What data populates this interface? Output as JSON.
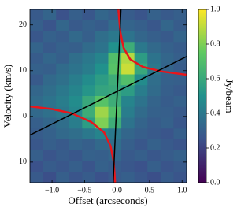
{
  "chart_data": {
    "type": "heatmap",
    "colormap": "viridis",
    "xlabel": "Offset (arcseconds)",
    "ylabel": "Velocity (km/s)",
    "xlim": [
      -1.34,
      1.07
    ],
    "ylim": [
      -14.5,
      23.4
    ],
    "xticks": [
      {
        "value": -1,
        "label": "−1.0"
      },
      {
        "value": -0.5,
        "label": "−0.5"
      },
      {
        "value": 0,
        "label": "0.0"
      },
      {
        "value": 0.5,
        "label": "0.5"
      },
      {
        "value": 1,
        "label": "1.0"
      }
    ],
    "yticks": [
      {
        "value": -10,
        "label": "−10"
      },
      0,
      10,
      20
    ],
    "z": [
      [
        0.28,
        0.32,
        0.25,
        0.3,
        0.27,
        0.33,
        0.3,
        0.29,
        0.26,
        0.31,
        0.28,
        0.3
      ],
      [
        0.3,
        0.26,
        0.33,
        0.28,
        0.31,
        0.29,
        0.35,
        0.32,
        0.3,
        0.27,
        0.33,
        0.29
      ],
      [
        0.27,
        0.31,
        0.29,
        0.34,
        0.3,
        0.36,
        0.4,
        0.38,
        0.33,
        0.3,
        0.28,
        0.32
      ],
      [
        0.32,
        0.28,
        0.31,
        0.3,
        0.35,
        0.38,
        0.5,
        0.62,
        0.4,
        0.34,
        0.31,
        0.29
      ],
      [
        0.29,
        0.33,
        0.3,
        0.36,
        0.4,
        0.45,
        0.7,
        0.88,
        0.55,
        0.38,
        0.33,
        0.3
      ],
      [
        0.31,
        0.3,
        0.35,
        0.38,
        0.42,
        0.5,
        0.72,
        0.92,
        0.6,
        0.4,
        0.32,
        0.29
      ],
      [
        0.28,
        0.34,
        0.37,
        0.42,
        0.48,
        0.55,
        0.62,
        0.7,
        0.48,
        0.36,
        0.31,
        0.3
      ],
      [
        0.33,
        0.36,
        0.4,
        0.45,
        0.52,
        0.58,
        0.6,
        0.55,
        0.42,
        0.35,
        0.3,
        0.28
      ],
      [
        0.35,
        0.38,
        0.42,
        0.48,
        0.6,
        0.72,
        0.62,
        0.45,
        0.38,
        0.32,
        0.29,
        0.31
      ],
      [
        0.34,
        0.37,
        0.4,
        0.46,
        0.62,
        0.85,
        0.7,
        0.42,
        0.35,
        0.31,
        0.3,
        0.28
      ],
      [
        0.3,
        0.33,
        0.36,
        0.42,
        0.55,
        0.8,
        0.62,
        0.38,
        0.32,
        0.29,
        0.31,
        0.27
      ],
      [
        0.29,
        0.31,
        0.34,
        0.36,
        0.4,
        0.45,
        0.4,
        0.33,
        0.3,
        0.28,
        0.26,
        0.3
      ],
      [
        0.27,
        0.3,
        0.28,
        0.32,
        0.3,
        0.34,
        0.36,
        0.3,
        0.27,
        0.31,
        0.28,
        0.26
      ],
      [
        0.3,
        0.26,
        0.29,
        0.27,
        0.31,
        0.3,
        0.33,
        0.28,
        0.3,
        0.27,
        0.29,
        0.31
      ],
      [
        0.25,
        0.29,
        0.27,
        0.3,
        0.26,
        0.31,
        0.29,
        0.27,
        0.25,
        0.3,
        0.26,
        0.28
      ],
      [
        0.28,
        0.24,
        0.3,
        0.26,
        0.29,
        0.25,
        0.28,
        0.3,
        0.27,
        0.24,
        0.29,
        0.26
      ]
    ],
    "series": [
      {
        "color": "#e8161b",
        "x": [
          -1.34,
          -1,
          -0.7,
          -0.4,
          -0.2,
          -0.1,
          -0.05,
          -0.03
        ],
        "values": [
          2.2,
          1.6,
          0.7,
          -1.2,
          -3.5,
          -6.5,
          -10,
          -14.5
        ]
      },
      {
        "color": "#e8161b",
        "x": [
          0.02,
          0.05,
          0.1,
          0.2,
          0.4,
          0.7,
          1.07
        ],
        "values": [
          23.4,
          18.5,
          15,
          12.5,
          10.8,
          9.8,
          9.1
        ]
      },
      {
        "color": "#000000",
        "x": [
          -1.34,
          1.07
        ],
        "values": [
          -4.1,
          13.1
        ]
      },
      {
        "color": "#000000",
        "x": [
          -0.06,
          0.06
        ],
        "values": [
          -14.5,
          23.4
        ]
      }
    ],
    "colorbar": {
      "label": "Jy/beam",
      "lim": [
        0,
        1
      ],
      "ticks": [
        {
          "value": 0,
          "label": "0.0"
        },
        0.2,
        0.4,
        0.6,
        0.8,
        {
          "value": 1,
          "label": "1.0"
        }
      ]
    }
  }
}
